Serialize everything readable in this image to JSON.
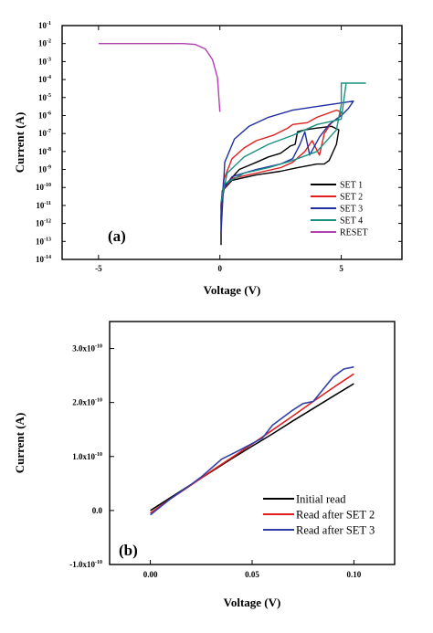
{
  "header_fragment": "",
  "footer_fragment": "",
  "chart_data": [
    {
      "panel": "(a)",
      "type": "line",
      "xlabel": "Voltage (V)",
      "ylabel": "Current (A)",
      "xlim": [
        -6.5,
        7.5
      ],
      "ylog": true,
      "ylim_exp": [
        -14,
        -1
      ],
      "xticks": [
        -5,
        0,
        5
      ],
      "ytick_base": "10",
      "yticks_exp": [
        -1,
        -2,
        -3,
        -4,
        -5,
        -6,
        -7,
        -8,
        -9,
        -10,
        -11,
        -12,
        -13,
        -14
      ],
      "legend_position": "bottom-right",
      "series": [
        {
          "name": "SET 1",
          "color": "#000000",
          "points": [
            [
              0.05,
              -13.2
            ],
            [
              0.05,
              -11
            ],
            [
              0.1,
              -10.2
            ],
            [
              0.5,
              -9.6
            ],
            [
              1.5,
              -9.3
            ],
            [
              2.5,
              -9.1
            ],
            [
              3.2,
              -8.9
            ],
            [
              4.0,
              -8.7
            ],
            [
              4.3,
              -8.7
            ],
            [
              4.5,
              -8.5
            ],
            [
              4.8,
              -7.6
            ],
            [
              4.9,
              -6.8
            ],
            [
              4.6,
              -6.6
            ],
            [
              4.0,
              -6.7
            ],
            [
              3.5,
              -6.8
            ],
            [
              3.2,
              -6.9
            ],
            [
              3.1,
              -7.6
            ],
            [
              2.9,
              -7.7
            ],
            [
              2.5,
              -8.1
            ],
            [
              2.0,
              -8.3
            ],
            [
              1.5,
              -8.6
            ],
            [
              0.8,
              -9.0
            ],
            [
              0.2,
              -9.9
            ],
            [
              0.05,
              -11
            ]
          ]
        },
        {
          "name": "SET 2",
          "color": "#e02020",
          "points": [
            [
              0.05,
              -11.5
            ],
            [
              0.1,
              -10.2
            ],
            [
              0.5,
              -9.5
            ],
            [
              1.5,
              -9.2
            ],
            [
              2.5,
              -8.9
            ],
            [
              3.0,
              -8.6
            ],
            [
              3.5,
              -8.0
            ],
            [
              3.8,
              -7.4
            ],
            [
              4.1,
              -8.2
            ],
            [
              4.3,
              -7.0
            ],
            [
              4.6,
              -6.4
            ],
            [
              4.9,
              -6.1
            ],
            [
              5.0,
              -5.8
            ],
            [
              4.8,
              -5.7
            ],
            [
              4.0,
              -6.1
            ],
            [
              3.6,
              -6.4
            ],
            [
              3.0,
              -6.5
            ],
            [
              2.8,
              -6.7
            ],
            [
              2.2,
              -7.1
            ],
            [
              1.5,
              -7.4
            ],
            [
              1.0,
              -7.8
            ],
            [
              0.5,
              -8.4
            ],
            [
              0.15,
              -9.6
            ],
            [
              0.05,
              -11.5
            ]
          ]
        },
        {
          "name": "SET 3",
          "color": "#2030a0",
          "points": [
            [
              0.05,
              -12.5
            ],
            [
              0.1,
              -10.2
            ],
            [
              0.5,
              -9.4
            ],
            [
              1.5,
              -9.0
            ],
            [
              2.5,
              -8.7
            ],
            [
              3.0,
              -8.4
            ],
            [
              3.3,
              -7.6
            ],
            [
              3.5,
              -6.9
            ],
            [
              3.7,
              -8.2
            ],
            [
              4.1,
              -7.2
            ],
            [
              4.5,
              -6.5
            ],
            [
              5.0,
              -6.0
            ],
            [
              5.3,
              -5.6
            ],
            [
              5.5,
              -5.2
            ],
            [
              5.0,
              -5.3
            ],
            [
              4.0,
              -5.5
            ],
            [
              3.0,
              -5.7
            ],
            [
              2.0,
              -6.1
            ],
            [
              1.2,
              -6.6
            ],
            [
              0.6,
              -7.3
            ],
            [
              0.2,
              -8.6
            ],
            [
              0.05,
              -12.5
            ]
          ]
        },
        {
          "name": "SET 4",
          "color": "#1a9080",
          "points": [
            [
              0.05,
              -10.8
            ],
            [
              0.2,
              -9.8
            ],
            [
              1.0,
              -9.2
            ],
            [
              2.0,
              -8.9
            ],
            [
              3.0,
              -8.5
            ],
            [
              4.0,
              -8.0
            ],
            [
              4.8,
              -6.8
            ],
            [
              5.0,
              -5.4
            ],
            [
              5.0,
              -4.2
            ],
            [
              6.0,
              -4.2
            ],
            [
              5.2,
              -4.2
            ],
            [
              5.0,
              -6.2
            ],
            [
              4.0,
              -6.5
            ],
            [
              3.0,
              -7.1
            ],
            [
              2.0,
              -7.6
            ],
            [
              1.0,
              -8.3
            ],
            [
              0.3,
              -9.2
            ],
            [
              0.05,
              -10.8
            ]
          ]
        },
        {
          "name": "RESET",
          "color": "#b040b0",
          "points": [
            [
              -5,
              -2.0
            ],
            [
              -1.5,
              -2.0
            ],
            [
              -1.0,
              -2.05
            ],
            [
              -0.6,
              -2.3
            ],
            [
              -0.3,
              -2.9
            ],
            [
              -0.1,
              -3.9
            ],
            [
              0,
              -5.8
            ]
          ]
        }
      ]
    },
    {
      "panel": "(b)",
      "type": "line",
      "xlabel": "Voltage (V)",
      "ylabel": "Current (A)",
      "xlim": [
        -0.02,
        0.12
      ],
      "ylim": [
        -1e-10,
        3.5e-10
      ],
      "xticks": [
        "0.00",
        "0.05",
        "0.10"
      ],
      "yticks": [
        {
          "mant": "3.0x10",
          "exp": "-10"
        },
        {
          "mant": "2.0x10",
          "exp": "-10"
        },
        {
          "mant": "1.0x10",
          "exp": "-10"
        },
        {
          "mant": "0.0",
          "exp": ""
        },
        {
          "mant": "-1.0x10",
          "exp": "-10"
        }
      ],
      "legend_position": "bottom-right",
      "series": [
        {
          "name": "Initial read",
          "color": "#000000",
          "points": [
            [
              0,
              0.0
            ],
            [
              0.01,
              2.4e-11
            ],
            [
              0.02,
              4.8e-11
            ],
            [
              0.03,
              7.2e-11
            ],
            [
              0.04,
              9.6e-11
            ],
            [
              0.05,
              1.19e-10
            ],
            [
              0.06,
              1.42e-10
            ],
            [
              0.07,
              1.66e-10
            ],
            [
              0.08,
              1.89e-10
            ],
            [
              0.09,
              2.12e-10
            ],
            [
              0.1,
              2.35e-10
            ]
          ]
        },
        {
          "name": "Read after SET 2",
          "color": "#e02020",
          "points": [
            [
              0,
              -5e-12
            ],
            [
              0.01,
              2.2e-11
            ],
            [
              0.02,
              4.7e-11
            ],
            [
              0.03,
              7.3e-11
            ],
            [
              0.04,
              9.8e-11
            ],
            [
              0.05,
              1.23e-10
            ],
            [
              0.06,
              1.49e-10
            ],
            [
              0.07,
              1.75e-10
            ],
            [
              0.08,
              2.02e-10
            ],
            [
              0.09,
              2.28e-10
            ],
            [
              0.1,
              2.53e-10
            ]
          ]
        },
        {
          "name": "Read after SET 3",
          "color": "#3040a8",
          "points": [
            [
              0,
              -8e-12
            ],
            [
              0.01,
              2.2e-11
            ],
            [
              0.02,
              4.8e-11
            ],
            [
              0.025,
              6.2e-11
            ],
            [
              0.035,
              9.5e-11
            ],
            [
              0.045,
              1.14e-10
            ],
            [
              0.055,
              1.34e-10
            ],
            [
              0.06,
              1.58e-10
            ],
            [
              0.07,
              1.86e-10
            ],
            [
              0.075,
              1.98e-10
            ],
            [
              0.08,
              2.02e-10
            ],
            [
              0.085,
              2.25e-10
            ],
            [
              0.09,
              2.48e-10
            ],
            [
              0.095,
              2.62e-10
            ],
            [
              0.1,
              2.66e-10
            ]
          ]
        }
      ]
    }
  ]
}
